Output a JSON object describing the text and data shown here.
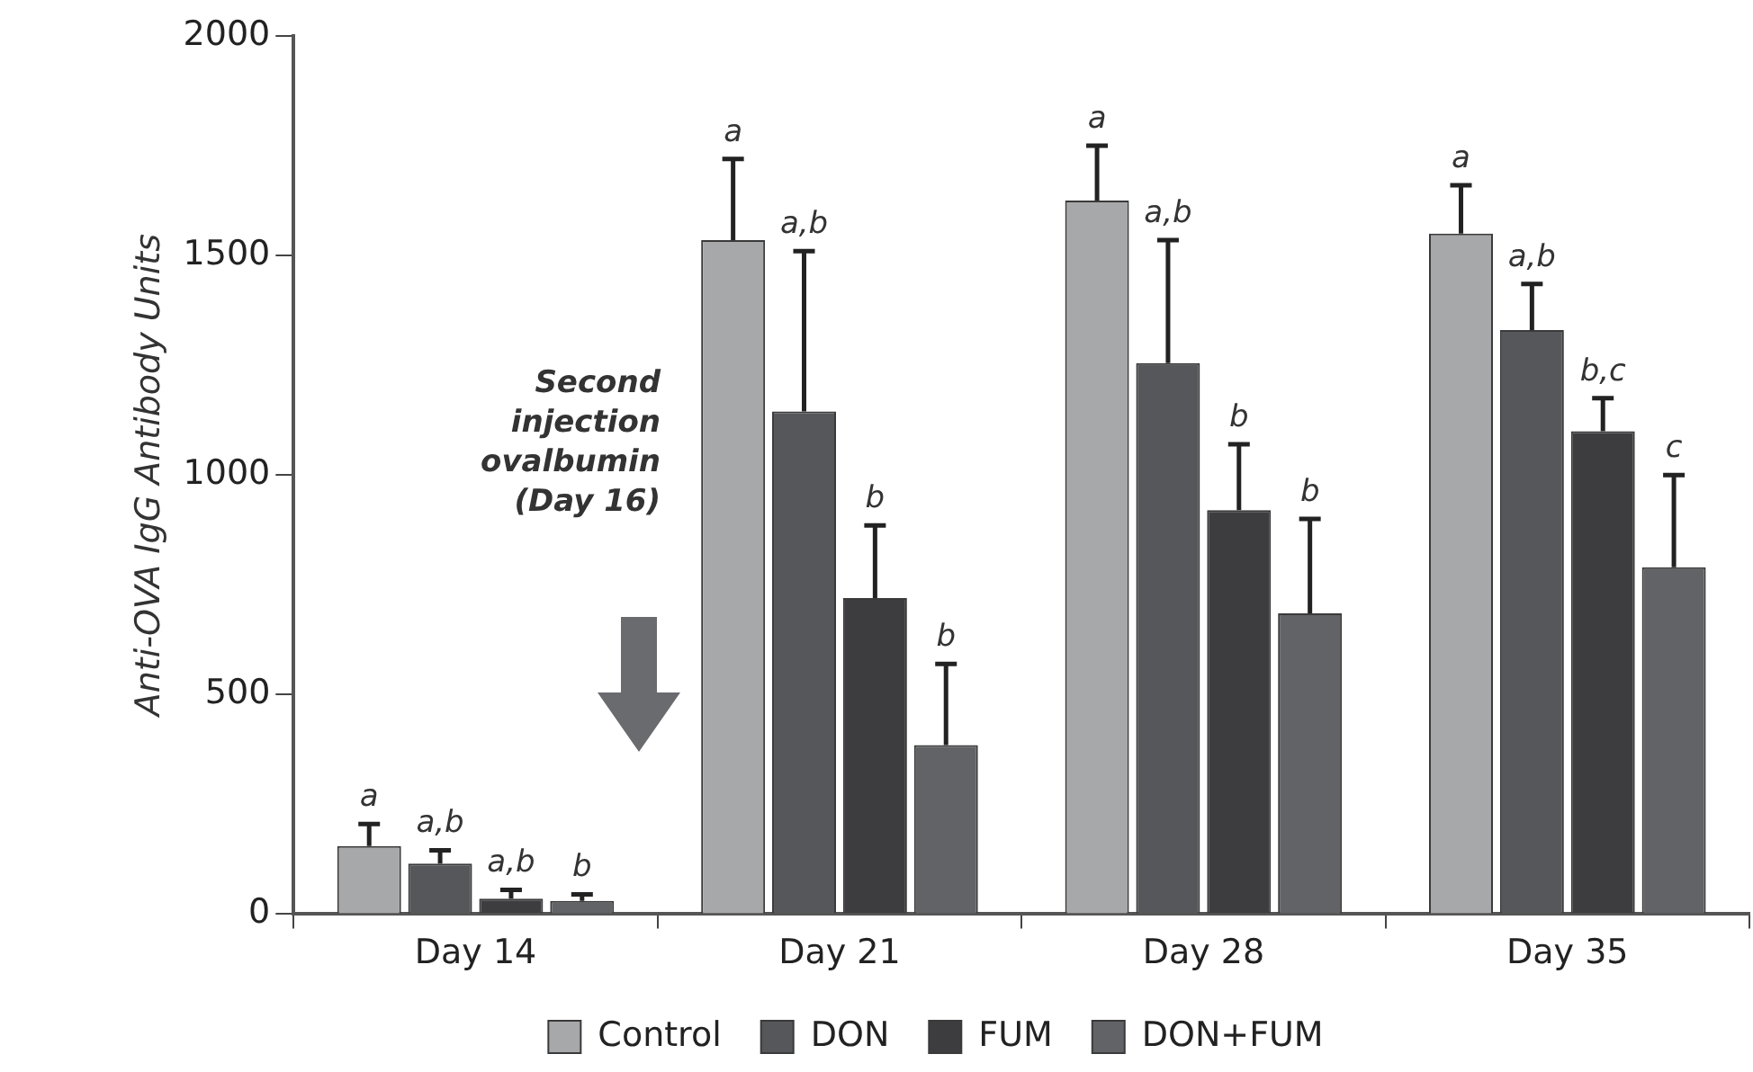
{
  "chart_data": {
    "type": "bar",
    "ylabel": "Anti-OVA IgG Antibody Units",
    "categories": [
      "Day 14",
      "Day 21",
      "Day 28",
      "Day 35"
    ],
    "series": [
      {
        "name": "Control",
        "color": "#a7a8aa",
        "values": [
          155,
          1535,
          1625,
          1550
        ],
        "errors": [
          [
            155,
            205
          ],
          [
            1535,
            1720
          ],
          [
            1625,
            1750
          ],
          [
            1550,
            1660
          ]
        ]
      },
      {
        "name": "DON",
        "color": "#55575a",
        "values": [
          115,
          1145,
          1255,
          1330
        ],
        "errors": [
          [
            115,
            145
          ],
          [
            1145,
            1510
          ],
          [
            1255,
            1535
          ],
          [
            1330,
            1435
          ]
        ]
      },
      {
        "name": "FUM",
        "color": "#3d3d3f",
        "values": [
          35,
          720,
          920,
          1100
        ],
        "errors": [
          [
            35,
            55
          ],
          [
            720,
            885
          ],
          [
            920,
            1070
          ],
          [
            1100,
            1175
          ]
        ]
      },
      {
        "name": "DON+FUM",
        "color": "#626366",
        "values": [
          30,
          385,
          685,
          790
        ],
        "errors": [
          [
            30,
            45
          ],
          [
            385,
            570
          ],
          [
            685,
            900
          ],
          [
            790,
            1000
          ]
        ]
      }
    ],
    "ylim": [
      0,
      2000
    ],
    "yticks": [
      0,
      500,
      1000,
      1500,
      2000
    ],
    "grid": false,
    "legend": "bottom",
    "annotations": [
      "a",
      "a,b",
      "a,b",
      "b",
      "a",
      "a,b",
      "b",
      "b",
      "a",
      "a,b",
      "b",
      "b",
      "a",
      "a,b",
      "b,c",
      "c",
      "Second injection ovalbumin (Day 16)"
    ]
  }
}
